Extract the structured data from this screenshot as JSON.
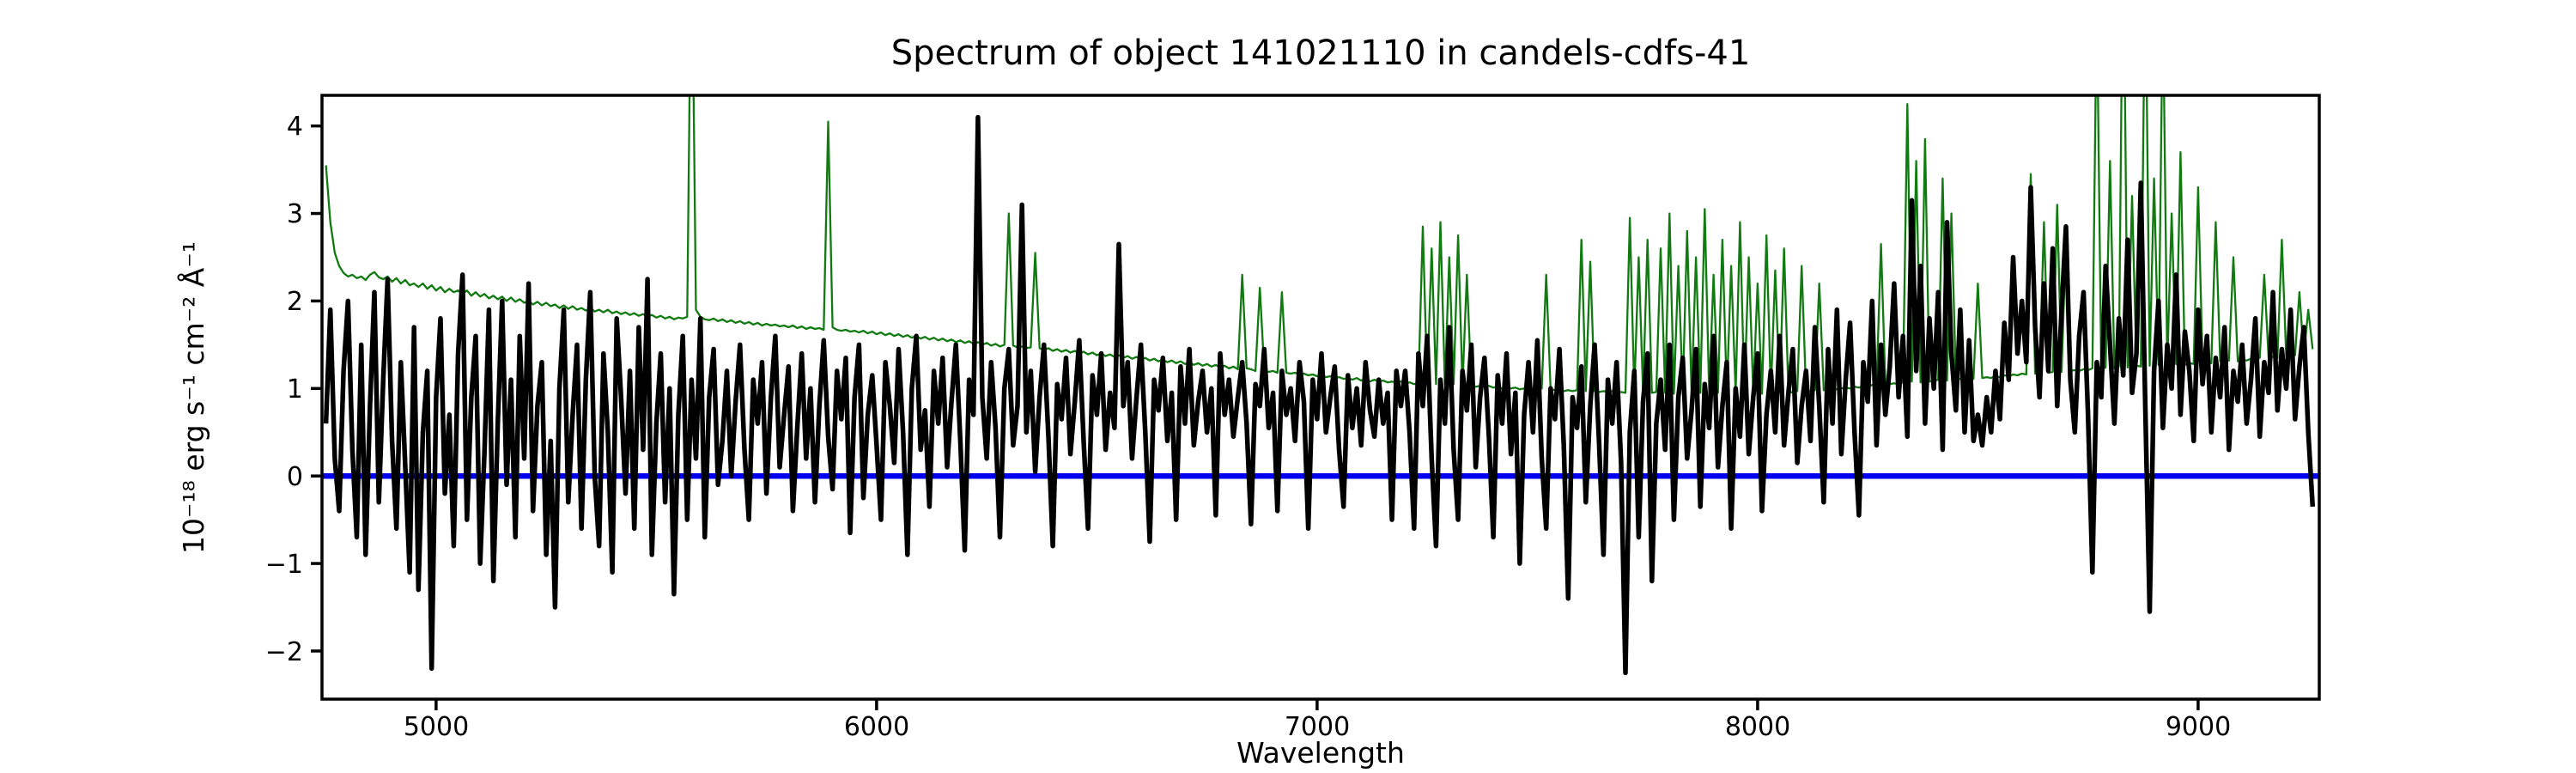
{
  "chart_data": {
    "type": "line",
    "title": "Spectrum of object 141021110 in candels-cdfs-41",
    "xlabel": "Wavelength",
    "ylabel": "10⁻¹⁸ erg s⁻¹ cm⁻² Å⁻¹",
    "xlim": [
      4741,
      9275
    ],
    "ylim": [
      -2.55,
      4.35
    ],
    "xticks": [
      5000,
      6000,
      7000,
      8000,
      9000
    ],
    "yticks": [
      4,
      3,
      2,
      1,
      0,
      -1,
      -2
    ],
    "xtick_labels": [
      "5000",
      "6000",
      "7000",
      "8000",
      "9000"
    ],
    "ytick_labels": [
      "4",
      "3",
      "2",
      "1",
      "0",
      "−1",
      "−2"
    ],
    "grid": false,
    "legend": null,
    "background": "#ffffff",
    "series": [
      {
        "name": "object-flux-spectrum",
        "color": "#000000",
        "linewidth": 5.5,
        "zorder": 3,
        "x_start": 4750,
        "x_step": 10,
        "values": [
          0.6,
          1.9,
          0.2,
          -0.4,
          1.2,
          2.0,
          0.3,
          -0.7,
          1.5,
          -0.9,
          0.8,
          2.1,
          -0.3,
          1.1,
          2.25,
          0.4,
          -0.6,
          1.3,
          0.1,
          -1.1,
          1.7,
          -1.3,
          0.5,
          1.2,
          -2.2,
          0.9,
          1.8,
          -0.2,
          0.7,
          -0.8,
          1.4,
          2.3,
          -0.5,
          0.9,
          1.6,
          -1.0,
          0.3,
          1.9,
          -1.2,
          0.6,
          2.0,
          -0.1,
          1.1,
          -0.7,
          1.6,
          0.2,
          2.2,
          -0.4,
          0.8,
          1.3,
          -0.9,
          0.4,
          -1.5,
          1.0,
          1.9,
          -0.3,
          0.7,
          1.5,
          -0.6,
          1.1,
          2.1,
          0.0,
          -0.8,
          1.4,
          0.5,
          -1.1,
          1.8,
          0.9,
          -0.2,
          1.2,
          -0.6,
          1.7,
          0.3,
          2.25,
          -0.9,
          0.6,
          1.4,
          -0.3,
          1.0,
          -1.35,
          0.7,
          1.6,
          -0.5,
          1.1,
          0.2,
          1.8,
          -0.7,
          0.9,
          1.45,
          -0.1,
          0.4,
          1.2,
          0.0,
          0.85,
          1.5,
          0.3,
          -0.5,
          1.1,
          0.6,
          1.3,
          -0.2,
          0.9,
          1.6,
          0.1,
          0.7,
          1.25,
          -0.4,
          0.55,
          1.4,
          0.2,
          1.0,
          -0.3,
          0.8,
          1.55,
          0.45,
          -0.15,
          1.2,
          0.65,
          1.35,
          -0.65,
          0.9,
          1.5,
          -0.25,
          0.7,
          1.15,
          0.35,
          -0.5,
          1.3,
          0.8,
          0.15,
          1.45,
          0.5,
          -0.9,
          1.0,
          1.6,
          0.3,
          0.75,
          -0.35,
          1.2,
          0.6,
          1.35,
          0.1,
          0.85,
          1.5,
          0.4,
          -0.85,
          1.1,
          0.7,
          4.1,
          0.9,
          0.2,
          1.3,
          0.55,
          -0.7,
          1.0,
          1.45,
          0.35,
          0.8,
          3.1,
          0.5,
          1.2,
          0.05,
          0.9,
          1.5,
          0.45,
          -0.8,
          1.05,
          0.65,
          1.35,
          0.25,
          0.85,
          1.55,
          0.4,
          -0.6,
          1.15,
          0.7,
          1.4,
          0.3,
          0.95,
          0.55,
          2.65,
          0.8,
          1.3,
          0.2,
          0.9,
          1.5,
          0.5,
          -0.75,
          1.1,
          0.75,
          1.35,
          0.4,
          0.95,
          -0.5,
          1.25,
          0.6,
          1.45,
          0.35,
          0.85,
          1.2,
          0.5,
          1.0,
          -0.45,
          1.4,
          0.7,
          1.1,
          0.45,
          0.9,
          1.3,
          0.6,
          -0.55,
          1.05,
          0.8,
          1.45,
          0.55,
          0.95,
          -0.4,
          1.2,
          0.7,
          1.0,
          0.4,
          1.3,
          0.85,
          -0.6,
          1.1,
          0.65,
          1.4,
          0.5,
          0.9,
          1.25,
          0.3,
          -0.35,
          1.15,
          0.55,
          1.0,
          0.35,
          1.3,
          0.75,
          0.45,
          1.1,
          0.6,
          0.95,
          -0.5,
          1.2,
          0.8,
          1.2,
          0.5,
          -0.6,
          1.4,
          0.8,
          1.6,
          0.2,
          -0.8,
          1.1,
          0.6,
          1.7,
          0.3,
          -0.5,
          1.2,
          0.75,
          1.5,
          0.1,
          0.9,
          1.35,
          0.45,
          -0.7,
          1.15,
          0.6,
          1.4,
          0.25,
          0.95,
          -1.0,
          0.7,
          1.3,
          0.5,
          1.55,
          0.2,
          -0.6,
          1.0,
          0.65,
          1.45,
          0.35,
          -1.4,
          0.9,
          0.55,
          1.25,
          -0.3,
          0.8,
          1.5,
          0.4,
          -0.9,
          1.1,
          0.6,
          1.3,
          0.15,
          -2.25,
          0.5,
          1.2,
          -0.7,
          0.85,
          1.4,
          -1.2,
          0.6,
          1.1,
          0.3,
          1.5,
          -0.5,
          0.9,
          1.35,
          0.2,
          0.75,
          1.45,
          -0.35,
          1.05,
          0.55,
          1.6,
          0.1,
          0.8,
          1.3,
          -0.6,
          1.0,
          0.45,
          1.5,
          0.25,
          0.9,
          1.4,
          -0.4,
          0.7,
          1.2,
          0.5,
          1.6,
          0.35,
          0.95,
          1.45,
          0.15,
          0.8,
          1.2,
          0.4,
          1.7,
          0.8,
          -0.3,
          1.45,
          0.6,
          1.9,
          0.25,
          1.1,
          1.75,
          0.5,
          -0.45,
          1.3,
          0.85,
          2.0,
          0.35,
          1.5,
          0.7,
          1.25,
          2.2,
          0.9,
          1.6,
          0.45,
          3.15,
          1.2,
          2.4,
          0.6,
          1.8,
          1.0,
          2.1,
          0.3,
          2.9,
          1.4,
          0.75,
          1.9,
          0.5,
          1.55,
          0.4,
          0.7,
          0.35,
          0.9,
          0.5,
          1.2,
          0.65,
          1.75,
          1.1,
          2.5,
          1.4,
          2.0,
          1.3,
          3.3,
          1.7,
          0.9,
          2.2,
          1.2,
          2.6,
          0.8,
          1.9,
          2.85,
          1.1,
          0.5,
          1.6,
          2.1,
          0.7,
          -1.1,
          1.3,
          0.9,
          2.4,
          1.5,
          0.6,
          1.8,
          1.15,
          2.7,
          0.95,
          1.4,
          3.35,
          0.8,
          -1.55,
          1.2,
          2.0,
          0.55,
          1.5,
          1.0,
          2.3,
          0.7,
          1.65,
          1.2,
          0.4,
          1.9,
          1.05,
          1.6,
          0.5,
          1.35,
          0.9,
          1.7,
          0.3,
          1.2,
          0.85,
          1.5,
          0.6,
          1.1,
          1.8,
          0.45,
          1.3,
          0.95,
          2.1,
          0.75,
          1.45,
          1.0,
          1.9,
          0.65,
          1.25,
          1.7,
          0.5,
          -0.35
        ]
      },
      {
        "name": "sky-noise-spectrum",
        "color": "#117a11",
        "linewidth": 2.3,
        "zorder": 2,
        "x_start": 4750,
        "x_step": 10,
        "values": [
          3.55,
          2.9,
          2.55,
          2.4,
          2.32,
          2.28,
          2.3,
          2.26,
          2.28,
          2.24,
          2.3,
          2.33,
          2.27,
          2.25,
          2.28,
          2.22,
          2.26,
          2.2,
          2.24,
          2.18,
          2.2,
          2.16,
          2.2,
          2.14,
          2.18,
          2.12,
          2.16,
          2.1,
          2.14,
          2.1,
          2.12,
          2.08,
          2.12,
          2.06,
          2.1,
          2.05,
          2.08,
          2.03,
          2.06,
          2.02,
          2.05,
          2.0,
          2.04,
          1.99,
          2.02,
          1.98,
          2.0,
          1.96,
          1.99,
          1.95,
          1.98,
          1.94,
          1.96,
          1.92,
          1.95,
          1.91,
          1.94,
          1.9,
          1.92,
          1.89,
          1.92,
          1.88,
          1.9,
          1.87,
          1.9,
          1.86,
          1.88,
          1.85,
          1.87,
          1.84,
          1.86,
          1.83,
          1.85,
          1.82,
          1.84,
          1.81,
          1.83,
          1.8,
          1.82,
          1.79,
          1.81,
          1.8,
          1.82,
          6.5,
          1.9,
          1.82,
          1.79,
          1.78,
          1.8,
          1.77,
          1.79,
          1.76,
          1.78,
          1.75,
          1.77,
          1.74,
          1.76,
          1.73,
          1.75,
          1.72,
          1.74,
          1.72,
          1.73,
          1.71,
          1.72,
          1.7,
          1.72,
          1.69,
          1.71,
          1.68,
          1.7,
          1.68,
          1.69,
          1.67,
          4.05,
          1.7,
          1.67,
          1.66,
          1.67,
          1.65,
          1.66,
          1.64,
          1.66,
          1.63,
          1.65,
          1.62,
          1.64,
          1.61,
          1.63,
          1.6,
          1.62,
          1.59,
          1.61,
          1.58,
          1.6,
          1.57,
          1.59,
          1.56,
          1.58,
          1.55,
          1.57,
          1.54,
          1.56,
          1.53,
          1.55,
          1.52,
          1.54,
          1.51,
          1.53,
          1.5,
          1.52,
          1.49,
          1.51,
          1.48,
          1.5,
          3.0,
          1.49,
          1.47,
          1.48,
          1.46,
          1.47,
          2.55,
          1.46,
          1.44,
          1.46,
          1.43,
          1.45,
          1.42,
          1.44,
          1.41,
          1.43,
          1.4,
          1.42,
          1.39,
          1.41,
          1.38,
          1.4,
          1.37,
          1.39,
          1.36,
          1.38,
          1.35,
          1.37,
          1.34,
          1.36,
          1.33,
          1.35,
          1.32,
          1.34,
          1.31,
          1.33,
          1.3,
          1.32,
          1.29,
          1.31,
          1.28,
          1.3,
          1.27,
          1.29,
          1.26,
          1.28,
          1.25,
          1.27,
          1.24,
          1.26,
          1.23,
          1.25,
          1.22,
          2.3,
          1.23,
          1.22,
          1.2,
          2.15,
          1.21,
          1.19,
          1.2,
          1.18,
          2.1,
          1.18,
          1.17,
          1.18,
          1.16,
          1.17,
          1.15,
          1.16,
          1.14,
          1.15,
          1.13,
          1.14,
          1.12,
          1.13,
          1.11,
          1.12,
          1.1,
          1.12,
          1.09,
          1.11,
          1.08,
          1.1,
          1.08,
          1.09,
          1.07,
          1.08,
          1.06,
          1.08,
          1.06,
          1.07,
          1.05,
          1.06,
          2.85,
          1.06,
          2.6,
          1.05,
          2.9,
          1.04,
          2.5,
          1.05,
          2.75,
          1.03,
          2.3,
          1.04,
          1.02,
          1.03,
          1.02,
          1.03,
          1.01,
          1.02,
          1.0,
          1.02,
          1.0,
          1.01,
          0.99,
          1.0,
          0.99,
          1.0,
          0.98,
          1.0,
          2.3,
          0.99,
          0.98,
          0.99,
          0.97,
          0.98,
          0.97,
          0.98,
          2.7,
          0.97,
          2.45,
          0.97,
          0.96,
          0.97,
          0.96,
          0.97,
          0.95,
          0.96,
          0.95,
          2.95,
          0.96,
          2.5,
          0.95,
          2.7,
          0.95,
          0.96,
          2.6,
          0.95,
          3.0,
          0.94,
          2.4,
          0.95,
          2.8,
          0.94,
          2.5,
          0.95,
          3.05,
          0.94,
          2.3,
          0.95,
          2.7,
          0.94,
          2.4,
          0.95,
          2.9,
          0.94,
          2.5,
          0.95,
          2.2,
          0.94,
          2.75,
          0.95,
          2.35,
          0.96,
          2.6,
          0.95,
          0.96,
          0.97,
          2.4,
          0.96,
          0.97,
          0.98,
          2.2,
          0.98,
          0.99,
          1.0,
          0.99,
          1.0,
          1.01,
          1.0,
          1.02,
          1.01,
          1.03,
          1.02,
          1.04,
          1.03,
          2.65,
          1.04,
          1.05,
          1.06,
          1.05,
          1.07,
          4.25,
          1.08,
          3.6,
          1.07,
          3.85,
          1.08,
          1.09,
          1.1,
          3.4,
          1.09,
          3.0,
          1.1,
          1.11,
          1.1,
          1.12,
          1.11,
          2.2,
          1.12,
          1.13,
          1.12,
          1.14,
          1.13,
          1.15,
          1.14,
          1.16,
          1.15,
          1.17,
          1.16,
          3.45,
          1.17,
          1.18,
          2.9,
          1.18,
          1.19,
          3.1,
          1.19,
          2.7,
          1.2,
          1.21,
          1.2,
          1.22,
          1.21,
          1.23,
          5.5,
          1.22,
          1.24,
          3.6,
          1.23,
          1.25,
          6.5,
          1.24,
          3.2,
          1.26,
          1.25,
          6.0,
          1.26,
          3.4,
          1.27,
          5.5,
          1.26,
          3.0,
          1.28,
          3.7,
          1.27,
          1.29,
          1.28,
          3.3,
          1.29,
          1.3,
          1.29,
          2.9,
          1.31,
          1.3,
          1.32,
          2.5,
          1.31,
          1.33,
          1.32,
          1.34,
          1.33,
          1.35,
          2.3,
          1.35,
          1.36,
          1.35,
          2.7,
          1.37,
          1.36,
          1.38,
          2.1,
          1.38,
          1.9,
          1.45
        ]
      },
      {
        "name": "zero-flux-line",
        "color": "#0000ee",
        "linewidth": 6.5,
        "zorder": 1,
        "hline": true,
        "y": 0
      }
    ]
  }
}
